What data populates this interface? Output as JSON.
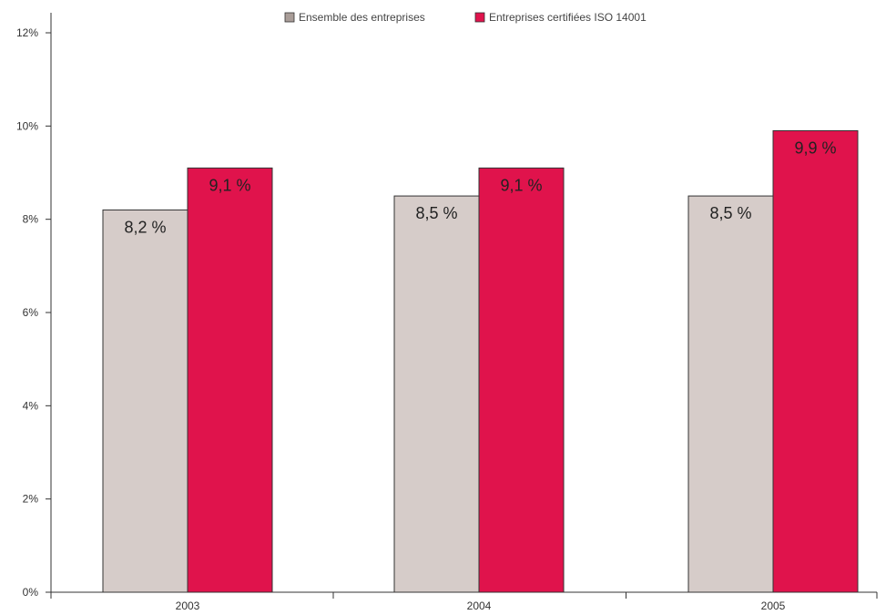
{
  "chart_data": {
    "type": "bar",
    "title": "",
    "xlabel": "",
    "ylabel": "",
    "categories": [
      "2003",
      "2004",
      "2005"
    ],
    "series": [
      {
        "name": "Ensemble des entreprises",
        "color": "#d6ccc9",
        "legend_color": "#a99d98",
        "values": [
          8.2,
          8.5,
          8.5
        ],
        "labels": [
          "8,2 %",
          "8,5 %",
          "8,5 %"
        ]
      },
      {
        "name": "Entreprises certifiées ISO 14001",
        "color": "#e0134c",
        "legend_color": "#e0134c",
        "values": [
          9.1,
          9.1,
          9.9
        ],
        "labels": [
          "9,1 %",
          "9,1 %",
          "9,9 %"
        ]
      }
    ],
    "ylim": [
      0,
      12
    ],
    "yticks": [
      0,
      2,
      4,
      6,
      8,
      10,
      12
    ],
    "ytick_labels": [
      "0%",
      "2%",
      "4%",
      "6%",
      "8%",
      "10%",
      "12%"
    ],
    "grid": false,
    "legend": "top-center"
  }
}
